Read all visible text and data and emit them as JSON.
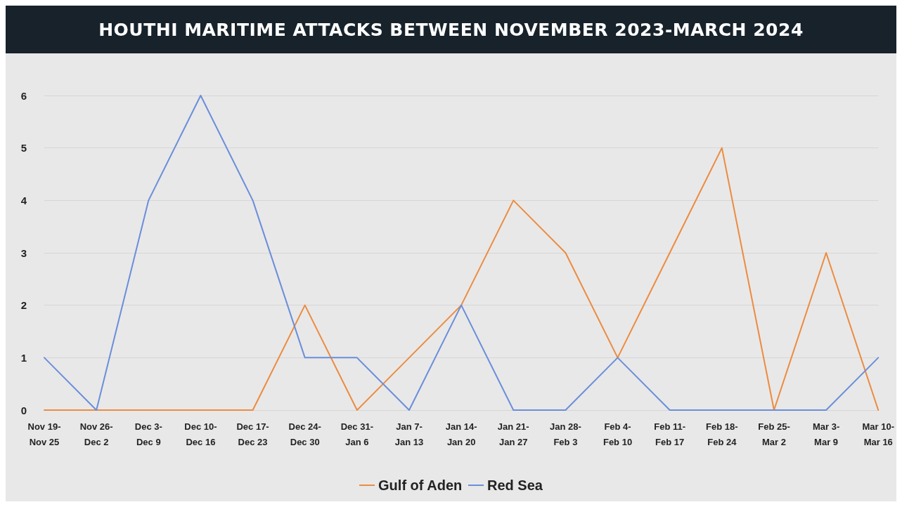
{
  "chart_data": {
    "type": "line",
    "title": "HOUTHI MARITIME ATTACKS BETWEEN NOVEMBER 2023-MARCH 2024",
    "categories": [
      "Nov 19-\nNov 25",
      "Nov 26-\nDec 2",
      "Dec 3-\nDec 9",
      "Dec 10-\nDec 16",
      "Dec 17-\nDec 23",
      "Dec 24-\nDec 30",
      "Dec 31-\nJan 6",
      "Jan 7-\nJan 13",
      "Jan 14-\nJan 20",
      "Jan 21-\nJan 27",
      "Jan 28-\nFeb 3",
      "Feb 4-\nFeb 10",
      "Feb 11-\nFeb 17",
      "Feb 18-\nFeb 24",
      "Feb 25-\nMar 2",
      "Mar 3-\nMar 9",
      "Mar 10-\nMar 16"
    ],
    "series": [
      {
        "name": "Gulf of Aden",
        "color": "#ed8b3f",
        "values": [
          0,
          0,
          0,
          0,
          0,
          2,
          0,
          1,
          2,
          4,
          3,
          1,
          3,
          5,
          0,
          3,
          0
        ]
      },
      {
        "name": "Red Sea",
        "color": "#6a8edb",
        "values": [
          1,
          0,
          4,
          6,
          4,
          1,
          1,
          0,
          2,
          0,
          0,
          1,
          0,
          0,
          0,
          0,
          1
        ]
      }
    ],
    "ylim": [
      0,
      6
    ],
    "yticks": [
      0,
      1,
      2,
      3,
      4,
      5,
      6
    ],
    "grid": "y",
    "legend": "bottom",
    "marker": "none",
    "line_style": "solid"
  }
}
